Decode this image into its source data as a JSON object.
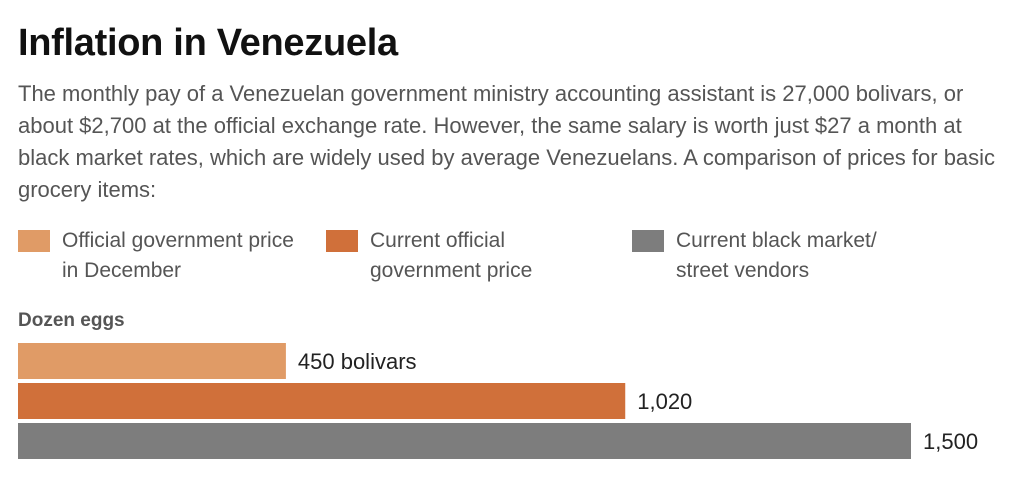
{
  "title": "Inflation in Venezuela",
  "subtitle": "The monthly pay of a Venezuelan government ministry accounting assistant is 27,000 bolivars, or about $2,700 at the official exchange rate. However, the same salary is worth just $27 a month at black market rates, which are widely used by average Venezuelans. A comparison of prices for basic grocery items:",
  "legend": [
    {
      "label": "Official government price in December",
      "color": "#e09b66"
    },
    {
      "label": "Current official government price",
      "color": "#d0703a"
    },
    {
      "label": "Current black market/ street vendors",
      "color": "#7d7d7d"
    }
  ],
  "chart_data": {
    "type": "bar",
    "orientation": "horizontal",
    "title": "Inflation in Venezuela",
    "categories": [
      "Dozen eggs"
    ],
    "series": [
      {
        "name": "Official government price in December",
        "values": [
          450
        ],
        "color": "#e09b66",
        "label": "450 bolivars"
      },
      {
        "name": "Current official government price",
        "values": [
          1020
        ],
        "color": "#d0703a",
        "label": "1,020"
      },
      {
        "name": "Current black market/ street vendors",
        "values": [
          1500
        ],
        "color": "#7d7d7d",
        "label": "1,500"
      }
    ],
    "xlim": [
      0,
      1500
    ],
    "grid": false,
    "legend_position": "top"
  }
}
